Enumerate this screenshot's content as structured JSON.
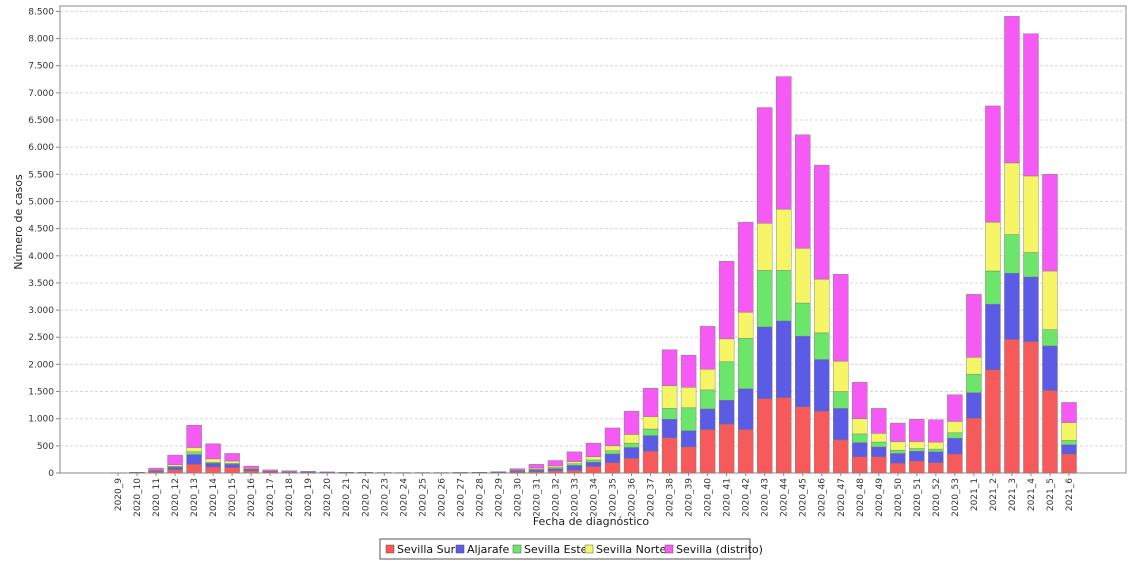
{
  "chart_data": {
    "type": "bar",
    "stacked": true,
    "xlabel": "Fecha de diagnóstico",
    "ylabel": "Número de casos",
    "ylim": [
      0,
      8600
    ],
    "yticks": [
      0,
      500,
      1000,
      1500,
      2000,
      2500,
      3000,
      3500,
      4000,
      4500,
      5000,
      5500,
      6000,
      6500,
      7000,
      7500,
      8000,
      8500
    ],
    "ytick_labels": [
      "0",
      "500",
      "1.000",
      "1.500",
      "2.000",
      "2.500",
      "3.000",
      "3.500",
      "4.000",
      "4.500",
      "5.000",
      "5.500",
      "6.000",
      "6.500",
      "7.000",
      "7.500",
      "8.000",
      "8.500"
    ],
    "grid": "horizontal-dashed",
    "legend_position": "bottom-center",
    "categories": [
      "2020_9",
      "2020_10",
      "2020_11",
      "2020_12",
      "2020_13",
      "2020_14",
      "2020_15",
      "2020_16",
      "2020_17",
      "2020_18",
      "2020_19",
      "2020_20",
      "2020_21",
      "2020_22",
      "2020_23",
      "2020_24",
      "2020_25",
      "2020_26",
      "2020_27",
      "2020_28",
      "2020_29",
      "2020_30",
      "2020_31",
      "2020_32",
      "2020_33",
      "2020_34",
      "2020_35",
      "2020_36",
      "2020_37",
      "2020_38",
      "2020_39",
      "2020_40",
      "2020_41",
      "2020_42",
      "2020_43",
      "2020_44",
      "2020_45",
      "2020_46",
      "2020_47",
      "2020_48",
      "2020_49",
      "2020_50",
      "2020_51",
      "2020_52",
      "2020_53",
      "2021_1",
      "2021_2",
      "2021_3",
      "2021_4",
      "2021_5",
      "2021_6"
    ],
    "series": [
      {
        "name": "Sevilla Sur",
        "color": "#f75a5a",
        "values": [
          2,
          5,
          20,
          60,
          160,
          110,
          100,
          40,
          15,
          10,
          8,
          5,
          3,
          3,
          2,
          2,
          2,
          2,
          3,
          3,
          5,
          15,
          25,
          40,
          50,
          120,
          190,
          270,
          400,
          650,
          480,
          800,
          900,
          800,
          1370,
          1390,
          1220,
          1140,
          610,
          300,
          300,
          180,
          220,
          190,
          350,
          1010,
          1900,
          2460,
          2420,
          1520,
          350
        ]
      },
      {
        "name": "Aljarafe",
        "color": "#5b5be6",
        "values": [
          1,
          3,
          15,
          50,
          180,
          70,
          60,
          25,
          10,
          5,
          4,
          3,
          2,
          2,
          1,
          1,
          1,
          1,
          2,
          2,
          4,
          15,
          30,
          40,
          90,
          80,
          160,
          200,
          290,
          340,
          300,
          380,
          440,
          750,
          1320,
          1410,
          1300,
          950,
          580,
          260,
          180,
          180,
          180,
          200,
          290,
          470,
          1210,
          1220,
          1190,
          820,
          170
        ]
      },
      {
        "name": "Sevilla Este",
        "color": "#6be66b",
        "values": [
          0,
          1,
          5,
          10,
          50,
          20,
          20,
          8,
          3,
          2,
          2,
          1,
          1,
          1,
          1,
          1,
          1,
          1,
          1,
          1,
          2,
          10,
          15,
          20,
          30,
          40,
          60,
          80,
          120,
          200,
          420,
          350,
          710,
          930,
          1040,
          930,
          610,
          490,
          310,
          160,
          90,
          60,
          50,
          50,
          100,
          340,
          610,
          710,
          450,
          300,
          80
        ]
      },
      {
        "name": "Sevilla Norte",
        "color": "#f5f566",
        "values": [
          1,
          2,
          10,
          30,
          80,
          60,
          40,
          15,
          5,
          4,
          3,
          2,
          1,
          1,
          1,
          1,
          1,
          1,
          1,
          2,
          4,
          10,
          20,
          30,
          40,
          60,
          90,
          160,
          230,
          420,
          380,
          380,
          420,
          480,
          870,
          1130,
          1010,
          990,
          560,
          280,
          160,
          160,
          130,
          130,
          210,
          310,
          900,
          1320,
          1410,
          1080,
          330
        ]
      },
      {
        "name": "Sevilla (distrito)",
        "color": "#f55af5",
        "values": [
          1,
          4,
          40,
          180,
          410,
          280,
          140,
          40,
          25,
          20,
          15,
          10,
          8,
          6,
          5,
          4,
          4,
          4,
          5,
          6,
          10,
          30,
          70,
          100,
          180,
          250,
          330,
          430,
          520,
          660,
          590,
          790,
          1430,
          1660,
          2130,
          2440,
          2090,
          2100,
          1600,
          670,
          460,
          340,
          410,
          410,
          490,
          1160,
          2140,
          2700,
          2620,
          1780,
          370
        ]
      }
    ]
  }
}
